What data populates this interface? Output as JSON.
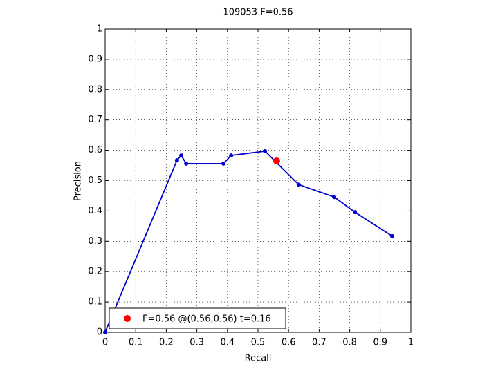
{
  "chart_data": {
    "type": "line",
    "title": "109053 F=0.56",
    "xlabel": "Recall",
    "ylabel": "Precision",
    "xlim": [
      0,
      1
    ],
    "ylim": [
      0,
      1
    ],
    "xticks": [
      0,
      0.1,
      0.2,
      0.3,
      0.4,
      0.5,
      0.6,
      0.7,
      0.8,
      0.9,
      1
    ],
    "yticks": [
      0,
      0.1,
      0.2,
      0.3,
      0.4,
      0.5,
      0.6,
      0.7,
      0.8,
      0.9,
      1
    ],
    "grid": true,
    "legend_loc": "lower left",
    "series": [
      {
        "color": "#0000cc",
        "mode": "lines+markers",
        "x": [
          0,
          0.235,
          0.249,
          0.265,
          0.387,
          0.412,
          0.523,
          0.633,
          0.749,
          0.817,
          0.939
        ],
        "values": [
          0,
          0.567,
          0.583,
          0.556,
          0.556,
          0.583,
          0.597,
          0.487,
          0.446,
          0.396,
          0.317
        ]
      },
      {
        "name": "F=0.56 @(0.56,0.56) t=0.16",
        "color": "#ff0000",
        "mode": "markers",
        "x": [
          0.561
        ],
        "values": [
          0.565
        ]
      }
    ]
  }
}
